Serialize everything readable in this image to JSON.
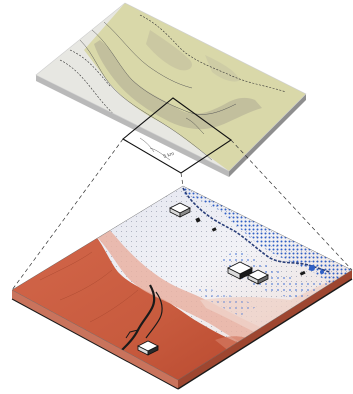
{
  "figure": {
    "panels": [
      "overview-map",
      "zoom-detail-block"
    ],
    "colors": {
      "overview_terrain": "#d9d8a9",
      "overview_lowland": "#e7e7e2",
      "slab_edge": "#9a9a9a",
      "dry_red": "#c85b3e",
      "mid_pink": "#e9b2a2",
      "cool_white": "#eef0f6",
      "water_blue": "#2f5fc6",
      "block_edge": "#1a1a1a"
    },
    "icons": [
      "buildings",
      "contour-lines",
      "leader-lines",
      "dot-stipple"
    ],
    "zoom_box_label": "5 km"
  }
}
